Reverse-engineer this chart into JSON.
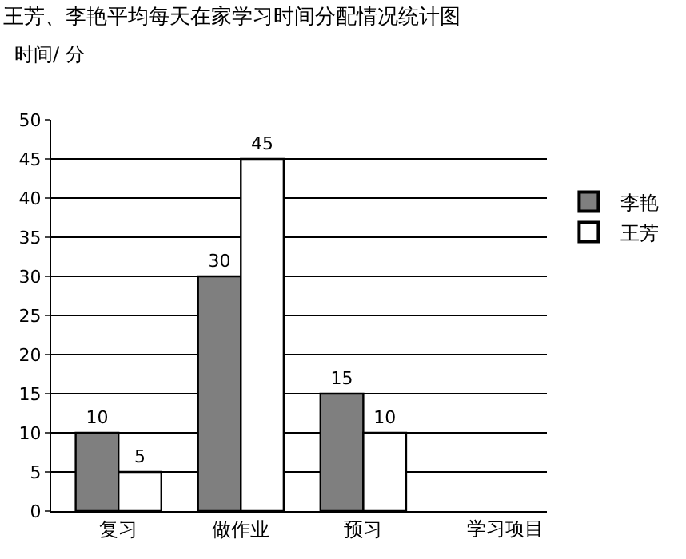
{
  "chart_data": {
    "type": "bar",
    "title": "王芳、李艳平均每天在家学习时间分配情况统计图",
    "ylabel": "时间/ 分",
    "xlabel": "学习项目",
    "categories": [
      "复习",
      "做作业",
      "预习"
    ],
    "series": [
      {
        "name": "李艳",
        "color": "#7f7f7f",
        "values": [
          10,
          30,
          15
        ]
      },
      {
        "name": "王芳",
        "color": "#ffffff",
        "values": [
          5,
          45,
          10
        ]
      }
    ],
    "ylim": [
      0,
      50
    ],
    "yticks": [
      0,
      5,
      10,
      15,
      20,
      25,
      30,
      35,
      40,
      45,
      50
    ],
    "grid": "y",
    "legend": "right",
    "data_labels": true
  }
}
